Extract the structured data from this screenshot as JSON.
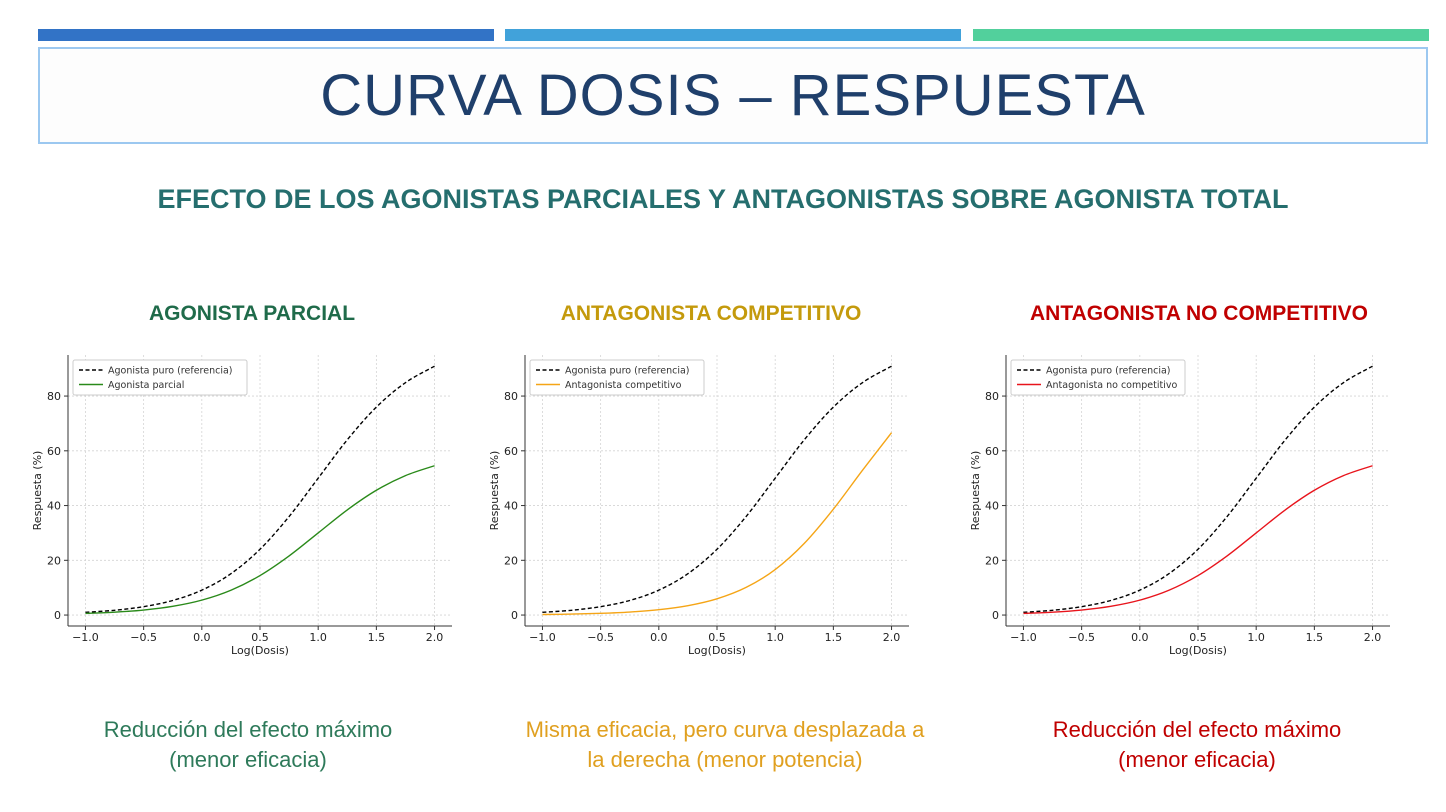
{
  "header": {
    "title": "CURVA DOSIS – RESPUESTA",
    "subtitle": "EFECTO DE LOS AGONISTAS PARCIALES Y ANTAGONISTAS SOBRE AGONISTA TOTAL",
    "bar_colors": [
      "#3273c6",
      "#41a2da",
      "#52d09c"
    ]
  },
  "panels": [
    {
      "title": "AGONISTA PARCIAL",
      "title_color": "#1f6b4a",
      "caption_lines": [
        "Reducción del efecto máximo",
        "(menor eficacia)"
      ],
      "caption_color": "#2e7a5a"
    },
    {
      "title": "ANTAGONISTA COMPETITIVO",
      "title_color": "#c49a0c",
      "caption_lines": [
        "Misma eficacia, pero curva desplazada a",
        "la derecha (menor potencia)"
      ],
      "caption_color": "#e0a020"
    },
    {
      "title": "ANTAGONISTA NO COMPETITIVO",
      "title_color": "#c00000",
      "caption_lines": [
        "Reducción del efecto máximo",
        "(menor eficacia)"
      ],
      "caption_color": "#c00000"
    }
  ],
  "chart_data": [
    {
      "type": "line",
      "xlabel": "Log(Dosis)",
      "ylabel": "Respuesta (%)",
      "xlim": [
        -1.15,
        2.15
      ],
      "ylim": [
        -4,
        95
      ],
      "xticks": [
        "−1.0",
        "−0.5",
        "0.0",
        "0.5",
        "1.0",
        "1.5",
        "2.0"
      ],
      "xtick_values": [
        -1,
        -0.5,
        0,
        0.5,
        1,
        1.5,
        2
      ],
      "yticks": [
        "0",
        "20",
        "40",
        "60",
        "80"
      ],
      "ytick_values": [
        0,
        20,
        40,
        60,
        80
      ],
      "grid": true,
      "legend": "top-left",
      "x": [
        -1,
        -0.75,
        -0.5,
        -0.25,
        0,
        0.25,
        0.5,
        0.75,
        1,
        1.25,
        1.5,
        1.75,
        2
      ],
      "series": [
        {
          "name": "Agonista puro (referencia)",
          "color": "#000000",
          "dashed": true,
          "values": [
            0.99,
            1.75,
            3.07,
            5.32,
            9.09,
            15.1,
            24.03,
            35.99,
            50,
            64.01,
            75.97,
            84.9,
            90.91
          ]
        },
        {
          "name": "Agonista parcial",
          "color": "#2a8a1a",
          "dashed": false,
          "values": [
            0.59,
            1.05,
            1.84,
            3.19,
            5.45,
            9.06,
            14.42,
            21.59,
            30,
            38.41,
            45.58,
            50.94,
            54.55
          ]
        }
      ]
    },
    {
      "type": "line",
      "xlabel": "Log(Dosis)",
      "ylabel": "Respuesta (%)",
      "xlim": [
        -1.15,
        2.15
      ],
      "ylim": [
        -4,
        95
      ],
      "xticks": [
        "−1.0",
        "−0.5",
        "0.0",
        "0.5",
        "1.0",
        "1.5",
        "2.0"
      ],
      "xtick_values": [
        -1,
        -0.5,
        0,
        0.5,
        1,
        1.5,
        2
      ],
      "yticks": [
        "0",
        "20",
        "40",
        "60",
        "80"
      ],
      "ytick_values": [
        0,
        20,
        40,
        60,
        80
      ],
      "grid": true,
      "legend": "top-left",
      "x": [
        -1,
        -0.75,
        -0.5,
        -0.25,
        0,
        0.25,
        0.5,
        0.75,
        1,
        1.25,
        1.5,
        1.75,
        2
      ],
      "series": [
        {
          "name": "Agonista puro (referencia)",
          "color": "#000000",
          "dashed": true,
          "values": [
            0.99,
            1.75,
            3.07,
            5.32,
            9.09,
            15.1,
            24.03,
            35.99,
            50,
            64.01,
            75.97,
            84.9,
            90.91
          ]
        },
        {
          "name": "Antagonista competitivo",
          "color": "#f5a516",
          "dashed": false,
          "values": [
            0.2,
            0.35,
            0.63,
            1.11,
            1.96,
            3.43,
            5.93,
            10.09,
            16.63,
            26.19,
            38.69,
            52.88,
            66.62
          ]
        }
      ]
    },
    {
      "type": "line",
      "xlabel": "Log(Dosis)",
      "ylabel": "Respuesta (%)",
      "xlim": [
        -1.15,
        2.15
      ],
      "ylim": [
        -4,
        95
      ],
      "xticks": [
        "−1.0",
        "−0.5",
        "0.0",
        "0.5",
        "1.0",
        "1.5",
        "2.0"
      ],
      "xtick_values": [
        -1,
        -0.5,
        0,
        0.5,
        1,
        1.5,
        2
      ],
      "yticks": [
        "0",
        "20",
        "40",
        "60",
        "80"
      ],
      "ytick_values": [
        0,
        20,
        40,
        60,
        80
      ],
      "grid": true,
      "legend": "top-left",
      "x": [
        -1,
        -0.75,
        -0.5,
        -0.25,
        0,
        0.25,
        0.5,
        0.75,
        1,
        1.25,
        1.5,
        1.75,
        2
      ],
      "series": [
        {
          "name": "Agonista puro (referencia)",
          "color": "#000000",
          "dashed": true,
          "values": [
            0.99,
            1.75,
            3.07,
            5.32,
            9.09,
            15.1,
            24.03,
            35.99,
            50,
            64.01,
            75.97,
            84.9,
            90.91
          ]
        },
        {
          "name": "Antagonista no competitivo",
          "color": "#e8141c",
          "dashed": false,
          "values": [
            0.59,
            1.05,
            1.84,
            3.19,
            5.45,
            9.06,
            14.42,
            21.59,
            30,
            38.41,
            45.58,
            50.94,
            54.55
          ]
        }
      ]
    }
  ]
}
